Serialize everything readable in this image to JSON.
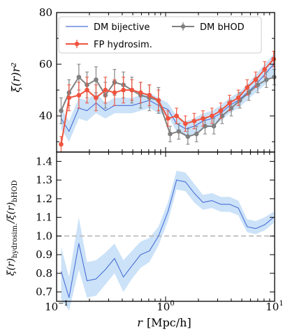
{
  "chart_data": [
    {
      "type": "line",
      "ylabel": "ξ(r)r²",
      "xscale": "log",
      "xlim": [
        0.1,
        10
      ],
      "ylim": [
        26,
        80
      ],
      "yticks": [
        40,
        60,
        80
      ],
      "legend": {
        "placement": "top",
        "entries": [
          "DM bijective",
          "FP hydrosim.",
          "DM bHOD"
        ]
      },
      "series": [
        {
          "name": "DM bijective",
          "color": "#4a6fd8",
          "style": "line with shaded band",
          "x": [
            0.11,
            0.13,
            0.16,
            0.19,
            0.23,
            0.28,
            0.34,
            0.41,
            0.49,
            0.59,
            0.71,
            0.86,
            1.05,
            1.26,
            1.52,
            1.83,
            2.2,
            2.66,
            3.2,
            3.86,
            4.65,
            5.6,
            6.7,
            8.1,
            9.8
          ],
          "values": [
            39,
            34,
            43,
            42,
            45,
            42,
            44,
            44,
            44,
            45,
            46,
            44,
            42.5,
            37,
            35,
            36,
            38,
            39,
            41,
            44,
            46,
            49,
            52,
            56,
            60
          ],
          "band_lower": [
            35,
            30,
            39,
            38,
            41,
            39,
            41,
            41,
            41,
            42,
            43,
            41,
            40,
            34,
            32,
            33,
            35,
            36,
            38,
            41,
            43,
            46,
            49,
            52,
            56
          ],
          "band_upper": [
            43,
            38,
            47,
            46,
            49,
            45,
            47,
            47,
            47,
            48,
            49,
            47,
            45,
            40,
            38,
            39,
            41,
            42,
            44,
            47,
            49,
            52,
            56,
            60,
            64
          ]
        },
        {
          "name": "FP hydrosim.",
          "color": "#f0533e",
          "style": "line with markers and error bars",
          "x": [
            0.11,
            0.13,
            0.16,
            0.19,
            0.23,
            0.28,
            0.34,
            0.41,
            0.49,
            0.59,
            0.71,
            0.86,
            1.05,
            1.26,
            1.52,
            1.83,
            2.2,
            2.66,
            3.2,
            3.86,
            4.65,
            5.6,
            6.7,
            8.1,
            9.8
          ],
          "values": [
            29,
            47,
            48,
            50,
            47,
            50,
            49,
            50,
            50,
            49,
            48,
            46,
            39,
            40,
            37,
            38,
            39,
            40,
            42,
            45,
            47,
            51,
            54,
            58,
            62
          ],
          "error": [
            3,
            5,
            5,
            5,
            5,
            5,
            5,
            5,
            4,
            4,
            4,
            4,
            3,
            3,
            3,
            3,
            3,
            3,
            3,
            3,
            3,
            3,
            3,
            3,
            3
          ]
        },
        {
          "name": "DM bHOD",
          "color": "#808080",
          "style": "line with markers and error bars",
          "x": [
            0.11,
            0.13,
            0.16,
            0.19,
            0.23,
            0.28,
            0.34,
            0.41,
            0.49,
            0.59,
            0.71,
            0.86,
            1.1,
            1.32,
            1.6,
            1.92,
            2.3,
            2.77,
            3.3,
            4.0,
            4.8,
            5.8,
            7.0,
            8.4,
            9.9
          ],
          "values": [
            42,
            49,
            55,
            52,
            54,
            48,
            53,
            52,
            50,
            48,
            47,
            46,
            33,
            34,
            32,
            33,
            36,
            36,
            40,
            43,
            46,
            49,
            52,
            54,
            55
          ],
          "error": [
            5,
            5,
            5,
            5,
            5,
            5,
            5,
            5,
            5,
            5,
            5,
            5,
            3,
            3,
            3,
            3,
            3,
            3,
            3,
            3,
            3,
            3,
            3,
            3,
            3
          ]
        }
      ]
    },
    {
      "type": "line",
      "ylabel": "ξ(r)hydrosim./ξ(r)bHOD",
      "ylabel_parts": {
        "prefix": "ξ(r)",
        "sub1": "hydrosim.",
        "mid": "/ξ(r)",
        "sub2": "bHOD"
      },
      "xlabel": "r [Mpc/h]",
      "xlabel_parts": {
        "var": "r",
        "unit": "[Mpc/h]"
      },
      "xscale": "log",
      "xlim": [
        0.1,
        10
      ],
      "xtick_labels": [
        {
          "base": "10",
          "exp": "−1"
        },
        {
          "base": "10",
          "exp": "0"
        },
        {
          "base": "10",
          "exp": "1"
        }
      ],
      "ylim": [
        0.65,
        1.45
      ],
      "yticks": [
        "0.7",
        "0.8",
        "0.9",
        "1.0",
        "1.1",
        "1.2",
        "1.3",
        "1.4"
      ],
      "reference_line": {
        "y": 1.0,
        "style": "dashed",
        "color": "#bbbbbb"
      },
      "series": [
        {
          "color": "#4a6fd8",
          "style": "line with shaded band",
          "x": [
            0.11,
            0.13,
            0.16,
            0.19,
            0.23,
            0.28,
            0.34,
            0.41,
            0.49,
            0.59,
            0.71,
            0.86,
            1.05,
            1.26,
            1.52,
            1.83,
            2.2,
            2.66,
            3.2,
            3.86,
            4.65,
            5.6,
            6.7,
            8.1,
            9.8
          ],
          "values": [
            0.81,
            0.67,
            0.96,
            0.76,
            0.77,
            0.82,
            0.88,
            0.78,
            0.84,
            0.9,
            0.92,
            1.0,
            1.13,
            1.3,
            1.29,
            1.23,
            1.18,
            1.19,
            1.17,
            1.17,
            1.15,
            1.05,
            1.04,
            1.06,
            1.1
          ],
          "band_lower": [
            0.66,
            0.6,
            0.82,
            0.67,
            0.68,
            0.74,
            0.8,
            0.7,
            0.77,
            0.83,
            0.86,
            0.95,
            1.08,
            1.25,
            1.24,
            1.18,
            1.14,
            1.15,
            1.13,
            1.13,
            1.11,
            1.02,
            1.01,
            1.03,
            1.07
          ],
          "band_upper": [
            0.94,
            0.78,
            1.1,
            0.86,
            0.87,
            0.91,
            0.96,
            0.87,
            0.92,
            0.97,
            0.99,
            1.05,
            1.18,
            1.35,
            1.34,
            1.28,
            1.22,
            1.23,
            1.21,
            1.21,
            1.19,
            1.09,
            1.08,
            1.1,
            1.13
          ]
        }
      ]
    }
  ]
}
